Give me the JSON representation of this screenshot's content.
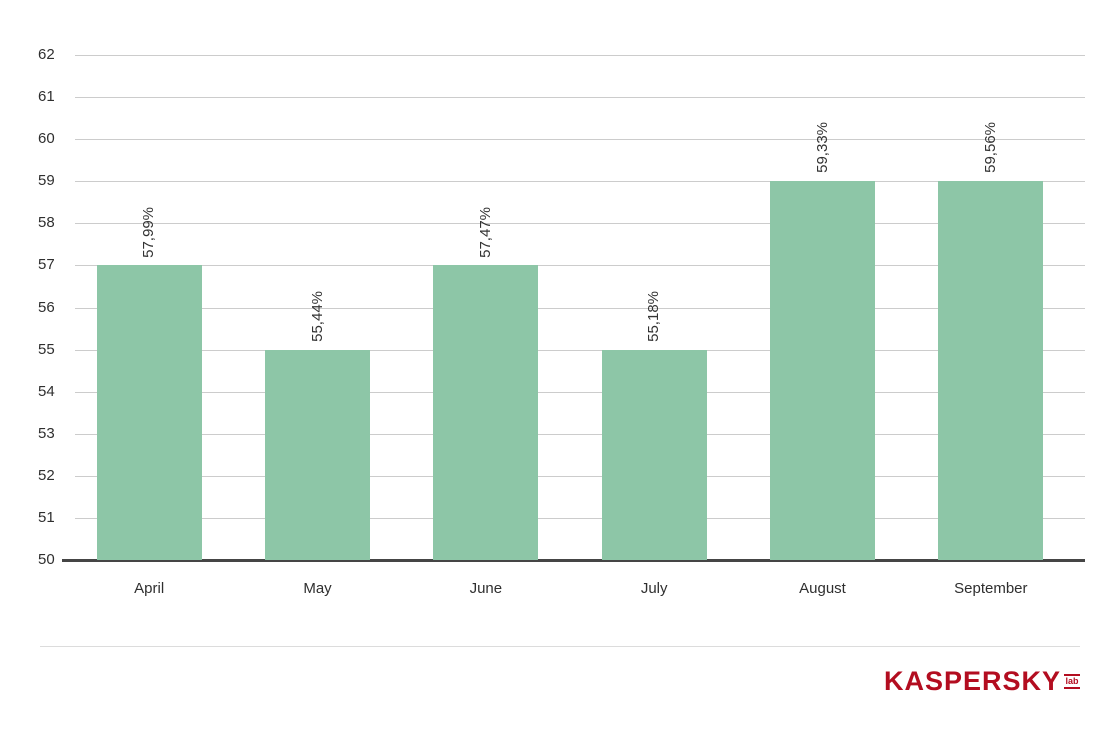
{
  "chart_data": {
    "type": "bar",
    "title": "",
    "xlabel": "",
    "ylabel": "",
    "categories": [
      "April",
      "May",
      "June",
      "July",
      "August",
      "September"
    ],
    "values": [
      57.99,
      55.44,
      57.47,
      55.18,
      59.33,
      59.56
    ],
    "value_labels": [
      "57,99%",
      "55,44%",
      "57,47%",
      "55,18%",
      "59,33%",
      "59,56%"
    ],
    "yticks": [
      50,
      51,
      52,
      53,
      54,
      55,
      56,
      57,
      58,
      59,
      60,
      61,
      62
    ],
    "ylim": [
      50,
      62
    ],
    "grid": true,
    "legend": "none",
    "bar_color": "#8dc6a7",
    "value_label_rotation": "vertical"
  },
  "branding": {
    "logo_text": "KASPERSKY",
    "logo_sub": "lab",
    "logo_color": "#b30d20"
  }
}
